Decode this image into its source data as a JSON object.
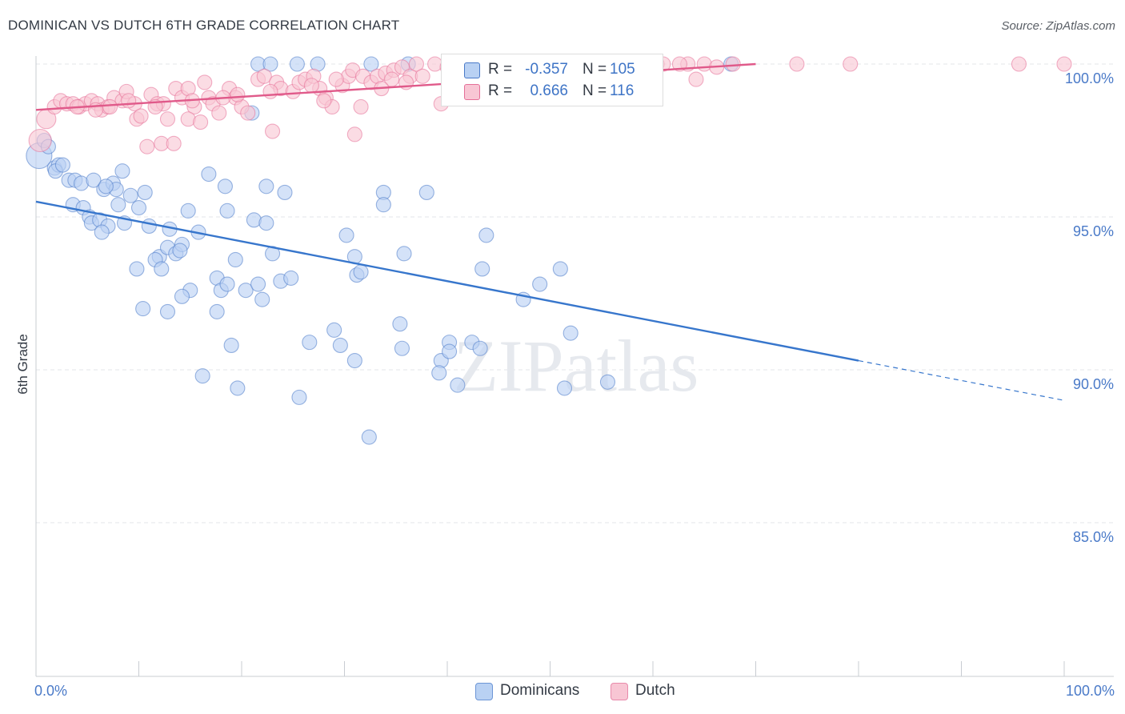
{
  "title": "DOMINICAN VS DUTCH 6TH GRADE CORRELATION CHART",
  "source_label": "Source: ZipAtlas.com",
  "watermark": "ZIPatlas",
  "legend": {
    "rows": [
      {
        "r_label": "R =",
        "r_value": "-0.357",
        "n_label": "N =",
        "n_value": "105",
        "color": "#a8c4ee"
      },
      {
        "r_label": "R =",
        "r_value": "0.666",
        "n_label": "N =",
        "n_value": "116",
        "color": "#f4b2c5"
      }
    ]
  },
  "bottom_legend": [
    {
      "label": "Dominicans",
      "color": "#b9d1f3"
    },
    {
      "label": "Dutch",
      "color": "#f8c6d4"
    }
  ],
  "chart_data": {
    "type": "scatter",
    "title": "DOMINICAN VS DUTCH 6TH GRADE CORRELATION CHART",
    "xlabel": "",
    "ylabel": "6th Grade",
    "xlim": [
      0,
      100
    ],
    "ylim": [
      80.5,
      100.5
    ],
    "x_tick_labels": [
      "0.0%",
      "100.0%"
    ],
    "y_ticks": [
      85,
      90,
      95,
      100
    ],
    "y_tick_labels": [
      "85.0%",
      "90.0%",
      "95.0%",
      "100.0%"
    ],
    "grid": "horizontal dashed",
    "series": [
      {
        "name": "Dominicans",
        "color": "#4a7ac8",
        "fill": "#b9d1f3",
        "r": -0.357,
        "n": 105,
        "trend": {
          "x0": 0,
          "y0": 95.5,
          "x1": 80,
          "y1": 90.3,
          "dash_to_x": 100,
          "dash_to_y": 89.0
        },
        "points": [
          [
            0.3,
            97.0
          ],
          [
            0.8,
            97.5
          ],
          [
            1.2,
            97.3
          ],
          [
            1.8,
            96.6
          ],
          [
            2.2,
            96.7
          ],
          [
            1.9,
            96.5
          ],
          [
            2.6,
            96.7
          ],
          [
            3.2,
            96.2
          ],
          [
            3.8,
            96.2
          ],
          [
            4.4,
            96.1
          ],
          [
            5.6,
            96.2
          ],
          [
            6.6,
            95.9
          ],
          [
            7.5,
            96.1
          ],
          [
            8.4,
            96.5
          ],
          [
            7.8,
            95.9
          ],
          [
            9.2,
            95.7
          ],
          [
            10.6,
            95.8
          ],
          [
            3.6,
            95.4
          ],
          [
            4.6,
            95.3
          ],
          [
            5.2,
            95.0
          ],
          [
            5.4,
            94.8
          ],
          [
            6.2,
            94.9
          ],
          [
            7.0,
            94.7
          ],
          [
            6.4,
            94.5
          ],
          [
            8.0,
            95.4
          ],
          [
            8.6,
            94.8
          ],
          [
            10.0,
            95.3
          ],
          [
            11.0,
            94.7
          ],
          [
            13.0,
            94.6
          ],
          [
            14.8,
            95.2
          ],
          [
            15.8,
            94.5
          ],
          [
            12.0,
            93.7
          ],
          [
            12.8,
            94.0
          ],
          [
            13.6,
            93.8
          ],
          [
            14.2,
            94.1
          ],
          [
            14.0,
            93.9
          ],
          [
            11.6,
            93.6
          ],
          [
            12.2,
            93.3
          ],
          [
            9.8,
            93.3
          ],
          [
            16.8,
            96.4
          ],
          [
            18.4,
            96.0
          ],
          [
            22.4,
            96.0
          ],
          [
            18.6,
            95.2
          ],
          [
            21.2,
            94.9
          ],
          [
            22.4,
            94.8
          ],
          [
            19.4,
            93.6
          ],
          [
            23.0,
            93.8
          ],
          [
            17.6,
            93.0
          ],
          [
            18.0,
            92.6
          ],
          [
            18.6,
            92.8
          ],
          [
            20.4,
            92.6
          ],
          [
            21.6,
            92.8
          ],
          [
            22.0,
            92.3
          ],
          [
            23.8,
            92.9
          ],
          [
            24.8,
            93.0
          ],
          [
            15.0,
            92.6
          ],
          [
            14.2,
            92.4
          ],
          [
            10.4,
            92.0
          ],
          [
            12.8,
            91.9
          ],
          [
            17.6,
            91.9
          ],
          [
            19.0,
            90.8
          ],
          [
            16.2,
            89.8
          ],
          [
            19.6,
            89.4
          ],
          [
            25.6,
            89.1
          ],
          [
            26.6,
            90.9
          ],
          [
            29.6,
            90.8
          ],
          [
            30.2,
            94.4
          ],
          [
            31.0,
            93.7
          ],
          [
            31.2,
            93.1
          ],
          [
            31.6,
            93.2
          ],
          [
            29.0,
            91.3
          ],
          [
            31.0,
            90.3
          ],
          [
            33.8,
            95.8
          ],
          [
            33.8,
            95.4
          ],
          [
            35.4,
            91.5
          ],
          [
            35.6,
            90.7
          ],
          [
            35.8,
            93.8
          ],
          [
            38.0,
            95.8
          ],
          [
            39.4,
            90.3
          ],
          [
            39.2,
            89.9
          ],
          [
            40.2,
            90.9
          ],
          [
            40.2,
            90.6
          ],
          [
            41.0,
            89.5
          ],
          [
            42.4,
            90.9
          ],
          [
            43.2,
            90.7
          ],
          [
            43.8,
            94.4
          ],
          [
            43.4,
            93.3
          ],
          [
            47.4,
            92.3
          ],
          [
            49.0,
            92.8
          ],
          [
            51.0,
            93.3
          ],
          [
            52.0,
            91.2
          ],
          [
            51.4,
            89.4
          ],
          [
            55.6,
            89.6
          ],
          [
            32.4,
            87.8
          ],
          [
            21.0,
            98.4
          ],
          [
            21.6,
            100.0
          ],
          [
            22.8,
            100.0
          ],
          [
            25.4,
            100.0
          ],
          [
            27.4,
            100.0
          ],
          [
            32.6,
            100.0
          ],
          [
            36.2,
            100.0
          ],
          [
            42.6,
            100.0
          ],
          [
            67.6,
            100.0
          ],
          [
            6.8,
            96.0
          ],
          [
            24.2,
            95.8
          ]
        ]
      },
      {
        "name": "Dutch",
        "color": "#e56f98",
        "fill": "#f8c6d4",
        "r": 0.666,
        "n": 116,
        "trend": {
          "x0": 0,
          "y0": 98.5,
          "x1": 70,
          "y1": 100.0
        },
        "points": [
          [
            0.4,
            97.5
          ],
          [
            1.0,
            98.2
          ],
          [
            1.8,
            98.6
          ],
          [
            2.4,
            98.8
          ],
          [
            3.0,
            98.7
          ],
          [
            3.6,
            98.7
          ],
          [
            4.2,
            98.6
          ],
          [
            4.8,
            98.7
          ],
          [
            5.4,
            98.8
          ],
          [
            6.0,
            98.7
          ],
          [
            6.4,
            98.5
          ],
          [
            7.0,
            98.6
          ],
          [
            7.6,
            98.9
          ],
          [
            8.4,
            98.8
          ],
          [
            8.8,
            99.1
          ],
          [
            9.6,
            98.7
          ],
          [
            9.8,
            98.2
          ],
          [
            10.2,
            98.3
          ],
          [
            11.2,
            99.0
          ],
          [
            11.8,
            98.7
          ],
          [
            12.4,
            98.7
          ],
          [
            12.8,
            98.2
          ],
          [
            13.6,
            99.2
          ],
          [
            14.2,
            98.9
          ],
          [
            14.8,
            99.2
          ],
          [
            15.4,
            98.6
          ],
          [
            16.4,
            99.4
          ],
          [
            16.8,
            98.9
          ],
          [
            17.2,
            98.7
          ],
          [
            18.8,
            99.2
          ],
          [
            19.4,
            98.9
          ],
          [
            20.0,
            98.6
          ],
          [
            20.6,
            98.4
          ],
          [
            21.6,
            99.5
          ],
          [
            22.2,
            99.6
          ],
          [
            23.4,
            99.4
          ],
          [
            23.8,
            99.2
          ],
          [
            25.0,
            99.1
          ],
          [
            25.6,
            99.4
          ],
          [
            26.2,
            99.5
          ],
          [
            27.0,
            99.6
          ],
          [
            27.6,
            99.2
          ],
          [
            28.2,
            98.9
          ],
          [
            28.8,
            98.6
          ],
          [
            29.8,
            99.3
          ],
          [
            30.4,
            99.6
          ],
          [
            30.8,
            99.8
          ],
          [
            31.8,
            99.6
          ],
          [
            32.6,
            99.4
          ],
          [
            33.2,
            99.6
          ],
          [
            34.0,
            99.7
          ],
          [
            34.8,
            99.8
          ],
          [
            35.6,
            99.9
          ],
          [
            36.4,
            99.6
          ],
          [
            37.0,
            100.0
          ],
          [
            38.8,
            100.0
          ],
          [
            40.0,
            99.9
          ],
          [
            40.8,
            99.7
          ],
          [
            42.0,
            99.8
          ],
          [
            43.0,
            99.9
          ],
          [
            44.2,
            100.0
          ],
          [
            45.6,
            99.9
          ],
          [
            47.0,
            100.0
          ],
          [
            48.8,
            100.0
          ],
          [
            50.4,
            99.9
          ],
          [
            52.6,
            100.0
          ],
          [
            55.8,
            100.0
          ],
          [
            60.4,
            100.0
          ],
          [
            63.4,
            100.0
          ],
          [
            65.0,
            100.0
          ],
          [
            74.0,
            100.0
          ],
          [
            79.2,
            100.0
          ],
          [
            95.6,
            100.0
          ],
          [
            100.0,
            100.0
          ],
          [
            10.8,
            97.3
          ],
          [
            12.2,
            97.4
          ],
          [
            13.4,
            97.4
          ],
          [
            14.8,
            98.2
          ],
          [
            16.0,
            98.1
          ],
          [
            17.8,
            98.4
          ],
          [
            23.0,
            97.8
          ],
          [
            28.0,
            98.8
          ],
          [
            31.0,
            97.7
          ],
          [
            31.6,
            98.6
          ],
          [
            34.6,
            99.5
          ],
          [
            36.0,
            99.4
          ],
          [
            39.4,
            98.7
          ],
          [
            42.6,
            99.3
          ],
          [
            44.8,
            99.6
          ],
          [
            46.2,
            99.8
          ],
          [
            48.0,
            99.7
          ],
          [
            57.2,
            99.9
          ],
          [
            58.8,
            100.0
          ],
          [
            61.0,
            100.0
          ],
          [
            62.6,
            100.0
          ],
          [
            64.2,
            99.5
          ],
          [
            66.2,
            99.9
          ],
          [
            67.8,
            100.0
          ],
          [
            4.0,
            98.6
          ],
          [
            5.8,
            98.5
          ],
          [
            7.2,
            98.6
          ],
          [
            9.0,
            98.8
          ],
          [
            11.6,
            98.6
          ],
          [
            15.2,
            98.8
          ],
          [
            18.2,
            98.9
          ],
          [
            19.6,
            99.0
          ],
          [
            22.8,
            99.1
          ],
          [
            26.8,
            99.3
          ],
          [
            29.2,
            99.5
          ],
          [
            33.6,
            99.2
          ],
          [
            37.6,
            99.6
          ],
          [
            41.4,
            99.7
          ],
          [
            45.2,
            99.8
          ],
          [
            49.6,
            99.9
          ],
          [
            53.8,
            100.0
          ],
          [
            56.6,
            99.8
          ]
        ]
      }
    ]
  }
}
